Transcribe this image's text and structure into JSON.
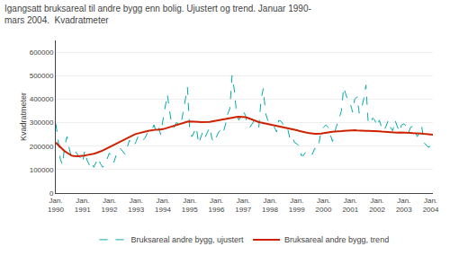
{
  "chart_data": {
    "type": "line",
    "title": "Igangsatt bruksareal til andre bygg enn bolig. Ujustert og trend. Januar 1990-\nmars 2004.  Kvadratmeter",
    "ylabel": "Kvadratmeter",
    "categories": [
      "Jan.\n1990",
      null,
      null,
      null,
      null,
      null,
      null,
      null,
      null,
      null,
      null,
      null,
      "Jan.\n1991",
      null,
      null,
      null,
      null,
      null,
      null,
      null,
      null,
      null,
      null,
      null,
      "Jan.\n1992",
      null,
      null,
      null,
      null,
      null,
      null,
      null,
      null,
      null,
      null,
      null,
      "Jan.\n1993",
      null,
      null,
      null,
      null,
      null,
      null,
      null,
      null,
      null,
      null,
      null,
      "Jan.\n1994",
      null,
      null,
      null,
      null,
      null,
      null,
      null,
      null,
      null,
      null,
      null,
      "Jan.\n1995",
      null,
      null,
      null,
      null,
      null,
      null,
      null,
      null,
      null,
      null,
      null,
      "Jan.\n1996",
      null,
      null,
      null,
      null,
      null,
      null,
      null,
      null,
      null,
      null,
      null,
      "Jan.\n1997",
      null,
      null,
      null,
      null,
      null,
      null,
      null,
      null,
      null,
      null,
      null,
      "Jan.\n1998",
      null,
      null,
      null,
      null,
      null,
      null,
      null,
      null,
      null,
      null,
      null,
      "Jan.\n1999",
      null,
      null,
      null,
      null,
      null,
      null,
      null,
      null,
      null,
      null,
      null,
      "Jan.\n2000",
      null,
      null,
      null,
      null,
      null,
      null,
      null,
      null,
      null,
      null,
      null,
      "Jan.\n2001",
      null,
      null,
      null,
      null,
      null,
      null,
      null,
      null,
      null,
      null,
      null,
      "Jan.\n2002",
      null,
      null,
      null,
      null,
      null,
      null,
      null,
      null,
      null,
      null,
      null,
      "Jan.\n2003",
      null,
      null,
      null,
      null,
      null,
      null,
      null,
      null,
      null,
      null,
      null,
      "Jan.\n2004",
      null
    ],
    "series": [
      {
        "name": "Bruksareal andre bygg, ujustert",
        "color": "#00AAAA",
        "line_style": "dashed",
        "values": [
          295000,
          230000,
          145000,
          120000,
          200000,
          240000,
          190000,
          155000,
          170000,
          175000,
          160000,
          150000,
          130000,
          180000,
          140000,
          120000,
          135000,
          110000,
          130000,
          150000,
          125000,
          110000,
          120000,
          145000,
          170000,
          155000,
          130000,
          160000,
          185000,
          190000,
          175000,
          165000,
          195000,
          225000,
          215000,
          200000,
          220000,
          245000,
          235000,
          225000,
          235000,
          255000,
          260000,
          265000,
          290000,
          260000,
          280000,
          250000,
          310000,
          360000,
          420000,
          350000,
          290000,
          280000,
          300000,
          295000,
          290000,
          340000,
          390000,
          450000,
          270000,
          240000,
          260000,
          280000,
          210000,
          235000,
          265000,
          240000,
          260000,
          280000,
          230000,
          215000,
          240000,
          260000,
          270000,
          255000,
          290000,
          335000,
          360000,
          500000,
          440000,
          340000,
          310000,
          330000,
          350000,
          330000,
          290000,
          280000,
          295000,
          310000,
          295000,
          280000,
          400000,
          445000,
          340000,
          310000,
          295000,
          290000,
          280000,
          260000,
          310000,
          305000,
          290000,
          290000,
          270000,
          230000,
          240000,
          215000,
          210000,
          200000,
          160000,
          160000,
          175000,
          165000,
          170000,
          165000,
          190000,
          185000,
          215000,
          270000,
          280000,
          290000,
          280000,
          250000,
          220000,
          260000,
          290000,
          320000,
          350000,
          450000,
          420000,
          390000,
          380000,
          345000,
          400000,
          410000,
          340000,
          360000,
          400000,
          460000,
          300000,
          295000,
          320000,
          310000,
          285000,
          310000,
          280000,
          265000,
          285000,
          310000,
          280000,
          265000,
          310000,
          285000,
          260000,
          290000,
          295000,
          285000,
          255000,
          280000,
          285000,
          260000,
          240000,
          260000,
          285000,
          215000,
          205000,
          195000,
          200000,
          210000
        ]
      },
      {
        "name": "Bruksareal andre bygg, trend",
        "color": "#CC2200",
        "line_style": "solid",
        "values": [
          215000,
          205000,
          195000,
          185000,
          178000,
          172000,
          165000,
          160000,
          158000,
          157000,
          157000,
          158000,
          158000,
          160000,
          162000,
          163000,
          165000,
          167000,
          170000,
          173000,
          177000,
          181000,
          186000,
          191000,
          195000,
          200000,
          205000,
          210000,
          215000,
          220000,
          225000,
          230000,
          235000,
          240000,
          245000,
          248000,
          252000,
          255000,
          258000,
          260000,
          262000,
          264000,
          266000,
          268000,
          270000,
          270000,
          270000,
          270000,
          272000,
          275000,
          278000,
          282000,
          285000,
          288000,
          291000,
          294000,
          297000,
          300000,
          302000,
          304000,
          305000,
          305000,
          305000,
          304000,
          303000,
          302000,
          302000,
          302000,
          302000,
          303000,
          305000,
          307000,
          308000,
          310000,
          312000,
          314000,
          315000,
          317000,
          318000,
          320000,
          322000,
          324000,
          325000,
          325000,
          325000,
          323000,
          320000,
          316000,
          312000,
          308000,
          305000,
          302000,
          300000,
          298000,
          297000,
          296000,
          294000,
          292000,
          290000,
          288000,
          286000,
          283000,
          280000,
          278000,
          276000,
          274000,
          272000,
          270000,
          268000,
          265000,
          262000,
          260000,
          258000,
          256000,
          254000,
          253000,
          252000,
          252000,
          252000,
          253000,
          255000,
          257000,
          258000,
          260000,
          261000,
          262000,
          262000,
          263000,
          264000,
          265000,
          266000,
          267000,
          268000,
          268000,
          268000,
          267000,
          266000,
          266000,
          265000,
          265000,
          265000,
          265000,
          265000,
          265000,
          264000,
          263000,
          262000,
          261000,
          260000,
          259000,
          258000,
          257000,
          257000,
          257000,
          258000,
          258000,
          258000,
          258000,
          257000,
          256000,
          255000,
          255000,
          254000,
          254000,
          253000,
          252000,
          251000,
          250000,
          249000,
          249000
        ]
      }
    ],
    "ylim": [
      0,
      650000
    ],
    "yticks": [
      0,
      100000,
      200000,
      300000,
      400000,
      500000,
      600000
    ],
    "grid": true,
    "legend": "bottom"
  }
}
